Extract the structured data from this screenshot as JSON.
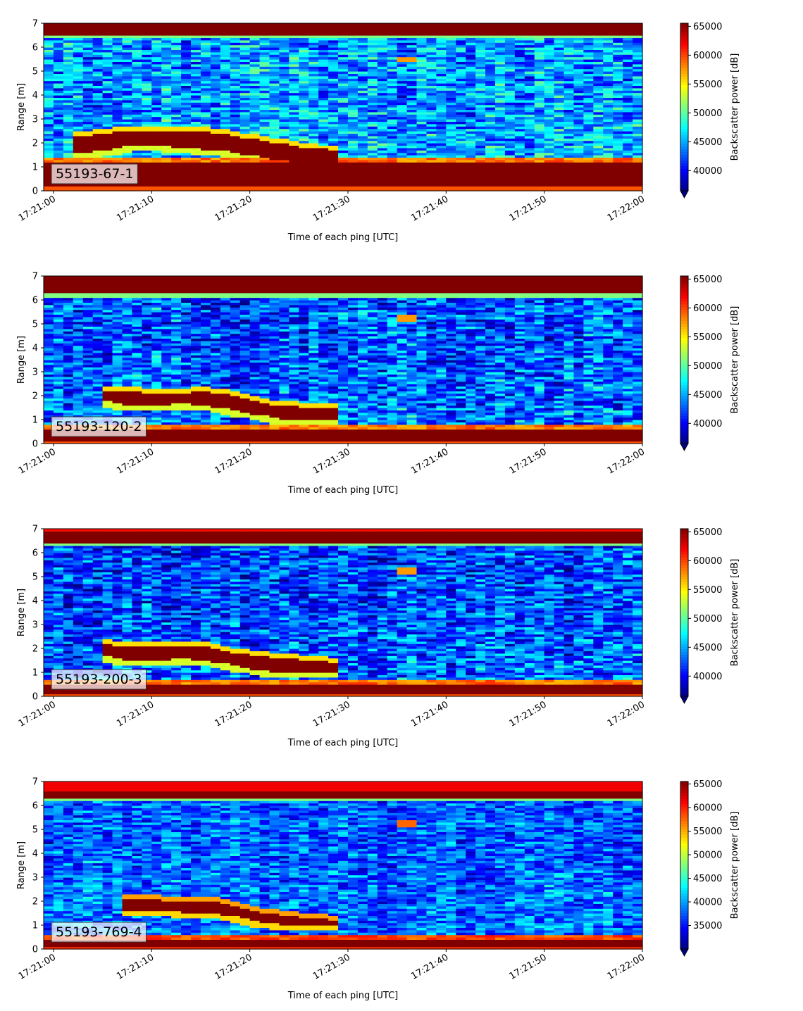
{
  "chart_data": [
    {
      "type": "heatmap",
      "label": "55193-67-1",
      "xlabel": "Time of each ping [UTC]",
      "ylabel": "Range [m]",
      "x_ticks": [
        "17:21:00",
        "17:21:10",
        "17:21:20",
        "17:21:30",
        "17:21:40",
        "17:21:50",
        "17:22:00"
      ],
      "x_range": [
        "17:20:59",
        "17:22:00"
      ],
      "y_ticks": [
        0,
        1,
        2,
        3,
        4,
        5,
        6,
        7
      ],
      "ylim": [
        0,
        7
      ],
      "colormap": "jet",
      "colorbar": {
        "label": "Backscatter power [dB]",
        "ticks": [
          40000,
          45000,
          50000,
          55000,
          60000,
          65000
        ],
        "range": [
          36500,
          65535
        ],
        "extend": "min"
      },
      "features": {
        "surface_band_m": [
          6.5,
          7.0
        ],
        "bottom_band_m": [
          0.25,
          1.15
        ],
        "layer": {
          "t_start_s": 2,
          "t_end_s": 29,
          "top_m": [
            2.3,
            2.4,
            2.5,
            2.5,
            2.5,
            2.4,
            2.2,
            2.0,
            1.8,
            1.7
          ],
          "bottom_m": [
            1.6,
            1.7,
            1.9,
            1.9,
            1.8,
            1.7,
            1.5,
            1.3,
            1.2,
            1.2
          ]
        },
        "noise_mean": 44500,
        "hot_spot": {
          "t_s": 36,
          "range_m": 5.5
        }
      }
    },
    {
      "type": "heatmap",
      "label": "55193-120-2",
      "xlabel": "Time of each ping [UTC]",
      "ylabel": "Range [m]",
      "x_ticks": [
        "17:21:00",
        "17:21:10",
        "17:21:20",
        "17:21:30",
        "17:21:40",
        "17:21:50",
        "17:22:00"
      ],
      "x_range": [
        "17:20:59",
        "17:22:00"
      ],
      "y_ticks": [
        0,
        1,
        2,
        3,
        4,
        5,
        6,
        7
      ],
      "ylim": [
        0,
        7
      ],
      "colormap": "jet",
      "colorbar": {
        "label": "Backscatter power [dB]",
        "ticks": [
          40000,
          45000,
          50000,
          55000,
          60000,
          65000
        ],
        "range": [
          36500,
          65535
        ],
        "extend": "min"
      },
      "features": {
        "surface_band_m": [
          6.3,
          7.0
        ],
        "bottom_band_m": [
          0.15,
          0.6
        ],
        "layer": {
          "t_start_s": 5,
          "t_end_s": 29,
          "top_m": [
            2.2,
            2.2,
            2.1,
            2.1,
            2.2,
            2.0,
            1.7,
            1.6,
            1.5,
            1.5
          ],
          "bottom_m": [
            1.8,
            1.6,
            1.6,
            1.7,
            1.6,
            1.4,
            1.2,
            1.0,
            1.0,
            1.0
          ]
        },
        "noise_mean": 42500,
        "hot_spot": {
          "t_s": 36,
          "range_m": 5.2
        }
      }
    },
    {
      "type": "heatmap",
      "label": "55193-200-3",
      "xlabel": "Time of each ping [UTC]",
      "ylabel": "Range [m]",
      "x_ticks": [
        "17:21:00",
        "17:21:10",
        "17:21:20",
        "17:21:30",
        "17:21:40",
        "17:21:50",
        "17:22:00"
      ],
      "x_range": [
        "17:20:59",
        "17:22:00"
      ],
      "y_ticks": [
        0,
        1,
        2,
        3,
        4,
        5,
        6,
        7
      ],
      "ylim": [
        0,
        7
      ],
      "colormap": "jet",
      "colorbar": {
        "label": "Backscatter power [dB]",
        "ticks": [
          40000,
          45000,
          50000,
          55000,
          60000,
          65000
        ],
        "range": [
          36500,
          65535
        ],
        "extend": "min"
      },
      "features": {
        "surface_band_m": [
          6.4,
          6.9
        ],
        "bottom_band_m": [
          0.1,
          0.45
        ],
        "layer": {
          "t_start_s": 5,
          "t_end_s": 29,
          "top_m": [
            2.2,
            2.1,
            2.1,
            2.1,
            2.1,
            1.8,
            1.7,
            1.6,
            1.5,
            1.4
          ],
          "bottom_m": [
            1.7,
            1.5,
            1.5,
            1.6,
            1.5,
            1.3,
            1.1,
            1.0,
            1.0,
            1.0
          ]
        },
        "noise_mean": 42000,
        "hot_spot": {
          "t_s": 36,
          "range_m": 5.2
        }
      }
    },
    {
      "type": "heatmap",
      "label": "55193-769-4",
      "xlabel": "Time of each ping [UTC]",
      "ylabel": "Range [m]",
      "x_ticks": [
        "17:21:00",
        "17:21:10",
        "17:21:20",
        "17:21:30",
        "17:21:40",
        "17:21:50",
        "17:22:00"
      ],
      "x_range": [
        "17:20:59",
        "17:22:00"
      ],
      "y_ticks": [
        0,
        1,
        2,
        3,
        4,
        5,
        6,
        7
      ],
      "ylim": [
        0,
        7
      ],
      "colormap": "jet",
      "colorbar": {
        "label": "Backscatter power [dB]",
        "ticks": [
          35000,
          40000,
          45000,
          50000,
          55000,
          60000,
          65000
        ],
        "range": [
          30000,
          65535
        ],
        "extend": "min"
      },
      "features": {
        "surface_band_m": [
          6.35,
          6.6
        ],
        "bottom_band_m": [
          0.15,
          0.35
        ],
        "layer": {
          "t_start_s": 7,
          "t_end_s": 29,
          "top_m": [
            2.1,
            2.1,
            2.0,
            2.0,
            2.0,
            1.7,
            1.5,
            1.4,
            1.3,
            1.2
          ],
          "bottom_m": [
            1.6,
            1.6,
            1.6,
            1.5,
            1.5,
            1.3,
            1.1,
            1.0,
            1.0,
            1.0
          ]
        },
        "noise_mean": 37500,
        "hot_spot": {
          "t_s": 36,
          "range_m": 5.2
        }
      }
    }
  ]
}
